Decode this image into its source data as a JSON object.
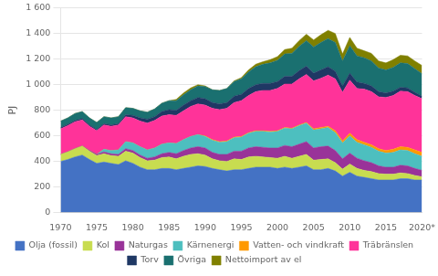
{
  "chart_data": {
    "type": "area",
    "stacked": true,
    "ylabel": "PJ",
    "x": [
      1970,
      1971,
      1972,
      1973,
      1974,
      1975,
      1976,
      1977,
      1978,
      1979,
      1980,
      1981,
      1982,
      1983,
      1984,
      1985,
      1986,
      1987,
      1988,
      1989,
      1990,
      1991,
      1992,
      1993,
      1994,
      1995,
      1996,
      1997,
      1998,
      1999,
      2000,
      2001,
      2002,
      2003,
      2004,
      2005,
      2006,
      2007,
      2008,
      2009,
      2010,
      2011,
      2012,
      2013,
      2014,
      2015,
      2016,
      2017,
      2018,
      2019,
      2020
    ],
    "series": [
      {
        "name": "Olja (fossil)",
        "color": "#4472c4",
        "values": [
          400,
          415,
          435,
          450,
          415,
          385,
          395,
          385,
          375,
          405,
          385,
          355,
          335,
          335,
          345,
          345,
          335,
          345,
          355,
          365,
          360,
          345,
          335,
          325,
          335,
          335,
          345,
          355,
          355,
          355,
          345,
          355,
          345,
          355,
          365,
          335,
          335,
          345,
          325,
          285,
          315,
          285,
          275,
          265,
          255,
          255,
          255,
          265,
          265,
          255,
          255
        ]
      },
      {
        "name": "Kol",
        "color": "#c8dc50",
        "values": [
          55,
          60,
          65,
          70,
          65,
          60,
          65,
          60,
          65,
          75,
          80,
          75,
          70,
          75,
          85,
          90,
          85,
          95,
          100,
          95,
          90,
          75,
          70,
          75,
          85,
          80,
          90,
          85,
          80,
          75,
          80,
          85,
          80,
          85,
          90,
          75,
          80,
          75,
          65,
          55,
          65,
          60,
          55,
          55,
          50,
          45,
          45,
          45,
          40,
          35,
          25
        ]
      },
      {
        "name": "Naturgas",
        "color": "#993399",
        "values": [
          0,
          0,
          0,
          0,
          5,
          10,
          15,
          15,
          15,
          20,
          20,
          20,
          20,
          25,
          30,
          35,
          40,
          45,
          50,
          55,
          55,
          50,
          50,
          55,
          60,
          65,
          70,
          75,
          75,
          75,
          80,
          85,
          90,
          95,
          100,
          95,
          100,
          100,
          95,
          80,
          85,
          80,
          75,
          70,
          60,
          55,
          55,
          60,
          60,
          55,
          50
        ]
      },
      {
        "name": "Kärnenergi",
        "color": "#4dbfbf",
        "values": [
          0,
          0,
          0,
          0,
          0,
          0,
          20,
          25,
          35,
          55,
          60,
          65,
          65,
          70,
          75,
          75,
          80,
          85,
          90,
          95,
          90,
          95,
          95,
          100,
          105,
          110,
          115,
          120,
          125,
          125,
          130,
          135,
          140,
          145,
          145,
          140,
          140,
          145,
          140,
          125,
          135,
          125,
          125,
          120,
          115,
          110,
          115,
          120,
          120,
          115,
          110
        ]
      },
      {
        "name": "Vatten- och vindkraft",
        "color": "#ff9900",
        "values": [
          0,
          0,
          0,
          0,
          0,
          0,
          0,
          0,
          0,
          0,
          0,
          0,
          0,
          0,
          0,
          0,
          0,
          0,
          0,
          0,
          5,
          5,
          5,
          5,
          5,
          5,
          5,
          5,
          5,
          5,
          5,
          5,
          5,
          5,
          5,
          10,
          10,
          10,
          15,
          15,
          20,
          20,
          20,
          20,
          20,
          20,
          25,
          25,
          25,
          30,
          30
        ]
      },
      {
        "name": "Träbränslen",
        "color": "#ff3399",
        "values": [
          200,
          205,
          210,
          205,
          190,
          185,
          190,
          190,
          195,
          195,
          195,
          200,
          210,
          215,
          220,
          220,
          220,
          225,
          235,
          240,
          240,
          245,
          250,
          255,
          270,
          280,
          290,
          305,
          315,
          320,
          330,
          340,
          345,
          360,
          375,
          375,
          385,
          400,
          405,
          380,
          415,
          400,
          415,
          415,
          405,
          415,
          420,
          435,
          435,
          425,
          420
        ]
      },
      {
        "name": "Torv",
        "color": "#1f3864",
        "values": [
          10,
          10,
          10,
          10,
          10,
          10,
          10,
          10,
          10,
          15,
          20,
          25,
          30,
          30,
          35,
          40,
          40,
          45,
          45,
          50,
          50,
          45,
          45,
          45,
          50,
          50,
          55,
          55,
          55,
          55,
          55,
          60,
          60,
          65,
          65,
          60,
          65,
          65,
          60,
          50,
          55,
          50,
          45,
          45,
          40,
          35,
          35,
          30,
          30,
          25,
          20
        ]
      },
      {
        "name": "Övriga",
        "color": "#1a7070",
        "values": [
          50,
          50,
          55,
          55,
          55,
          55,
          55,
          55,
          55,
          55,
          55,
          55,
          55,
          60,
          65,
          70,
          75,
          80,
          85,
          90,
          95,
          100,
          105,
          110,
          115,
          120,
          130,
          140,
          150,
          160,
          165,
          175,
          180,
          190,
          200,
          205,
          215,
          220,
          225,
          195,
          215,
          205,
          200,
          195,
          185,
          180,
          185,
          190,
          190,
          185,
          175
        ]
      },
      {
        "name": "Nettoimport av el",
        "color": "#808000",
        "values": [
          0,
          0,
          0,
          0,
          0,
          0,
          0,
          0,
          0,
          0,
          0,
          0,
          0,
          0,
          0,
          0,
          10,
          15,
          15,
          10,
          5,
          0,
          0,
          0,
          5,
          10,
          15,
          20,
          20,
          25,
          30,
          35,
          40,
          45,
          50,
          55,
          60,
          65,
          70,
          55,
          65,
          60,
          55,
          60,
          55,
          55,
          60,
          60,
          60,
          60,
          65
        ]
      }
    ],
    "xlim": [
      1970,
      2020
    ],
    "xticks": [
      1970,
      1975,
      1980,
      1985,
      1990,
      1995,
      2000,
      2005,
      2010,
      2015,
      {
        "value": 2020,
        "label": "2020*"
      }
    ],
    "ylim": [
      0,
      1600
    ],
    "yticks": [
      0,
      200,
      400,
      600,
      800,
      {
        "value": 1000,
        "label": "1 000"
      },
      {
        "value": 1200,
        "label": "1 200"
      },
      {
        "value": 1400,
        "label": "1 400"
      },
      {
        "value": 1600,
        "label": "1 600"
      }
    ],
    "grid": true,
    "legend": "bottom"
  }
}
